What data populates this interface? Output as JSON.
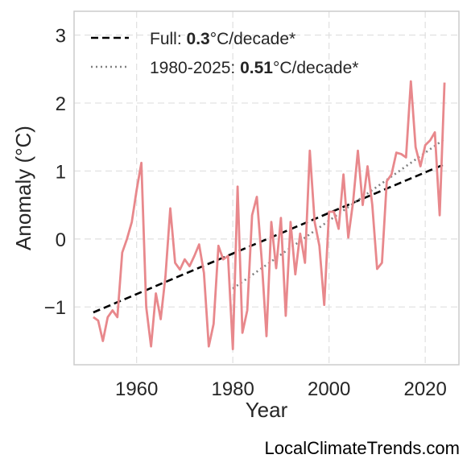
{
  "attribution": "LocalClimateTrends.com",
  "chart_data": {
    "type": "line",
    "xlabel": "Year",
    "ylabel": "Anomaly (°C)",
    "xlim": [
      1947,
      2027
    ],
    "ylim": [
      -1.85,
      3.35
    ],
    "xticks": [
      1960,
      1980,
      2000,
      2020
    ],
    "yticks": [
      -1,
      0,
      1,
      2,
      3
    ],
    "ytick_labels": [
      "−1",
      "0",
      "1",
      "2",
      "3"
    ],
    "grid": true,
    "legend_position": "top-left",
    "colors": {
      "series": "#e8888c",
      "full_trend": "#000000",
      "recent_trend": "#808080"
    },
    "series": [
      {
        "x": [
          1951,
          1952,
          1953,
          1954,
          1955,
          1956,
          1957,
          1958,
          1959,
          1960,
          1961,
          1962,
          1963,
          1964,
          1965,
          1966,
          1967,
          1968,
          1969,
          1970,
          1971,
          1972,
          1973,
          1974,
          1975,
          1976,
          1977,
          1978,
          1979,
          1980,
          1981,
          1982,
          1983,
          1984,
          1985,
          1986,
          1987,
          1988,
          1989,
          1990,
          1991,
          1992,
          1993,
          1994,
          1995,
          1996,
          1997,
          1998,
          1999,
          2000,
          2001,
          2002,
          2003,
          2004,
          2005,
          2006,
          2007,
          2008,
          2009,
          2010,
          2011,
          2012,
          2013,
          2014,
          2015,
          2016,
          2017,
          2018,
          2019,
          2020,
          2021,
          2022,
          2023,
          2024
        ],
        "y": [
          -1.15,
          -1.2,
          -1.5,
          -1.15,
          -1.05,
          -1.15,
          -0.2,
          0.0,
          0.25,
          0.72,
          1.12,
          -1.0,
          -1.58,
          -0.8,
          -1.18,
          -0.55,
          0.45,
          -0.35,
          -0.45,
          -0.3,
          -0.4,
          -0.25,
          -0.08,
          -0.5,
          -1.58,
          -1.25,
          -0.1,
          -0.3,
          -0.25,
          -1.62,
          0.77,
          -1.38,
          -1.05,
          0.35,
          0.62,
          -0.3,
          -1.43,
          0.25,
          -0.43,
          0.31,
          -1.13,
          0.25,
          -0.52,
          0.08,
          -0.35,
          1.3,
          0.25,
          -0.1,
          -0.97,
          0.4,
          0.4,
          0.15,
          0.95,
          0.02,
          0.55,
          1.3,
          0.5,
          1.07,
          0.5,
          -0.44,
          -0.35,
          0.85,
          0.95,
          1.27,
          1.25,
          1.2,
          2.32,
          1.35,
          1.07,
          1.38,
          1.45,
          1.57,
          0.35,
          2.3
        ]
      }
    ],
    "trends": [
      {
        "id": "full",
        "style": "dashed",
        "label_prefix": "Full: ",
        "rate": "0.3",
        "label_suffix": "°C/decade*",
        "x": [
          1951,
          2024
        ],
        "y": [
          -1.08,
          1.1
        ]
      },
      {
        "id": "recent",
        "style": "dotted",
        "label_prefix": "1980-2025: ",
        "rate": "0.51",
        "label_suffix": "°C/decade*",
        "x": [
          1980,
          2024
        ],
        "y": [
          -0.73,
          1.47
        ]
      }
    ]
  }
}
